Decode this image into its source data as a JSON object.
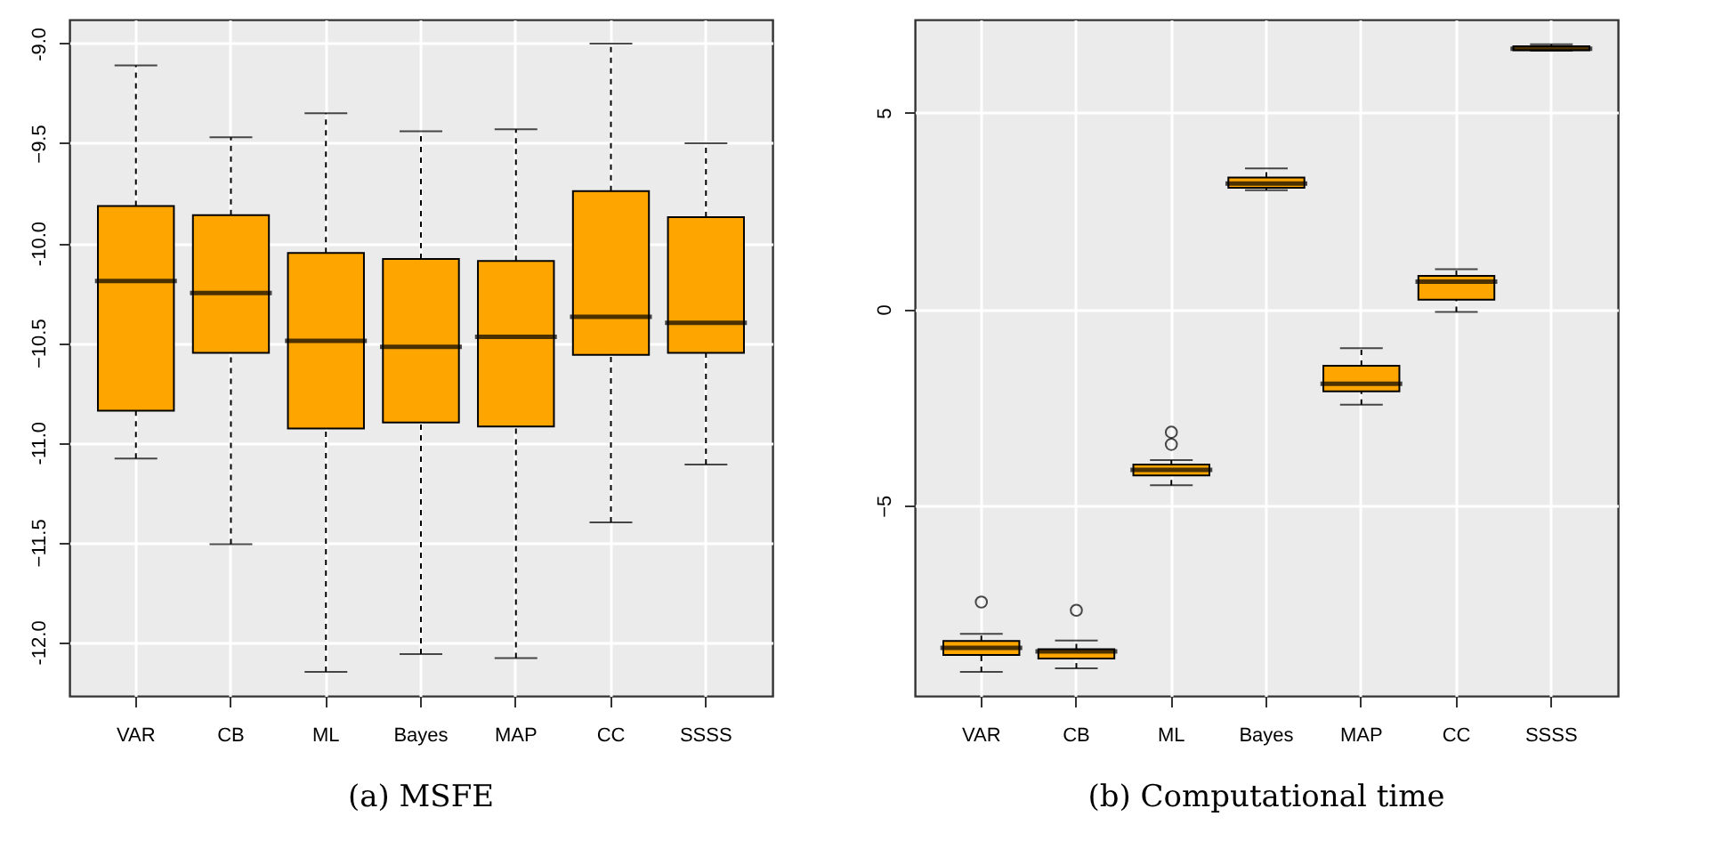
{
  "chart_data": [
    {
      "type": "box",
      "title": "(a) MSFE",
      "categories": [
        "VAR",
        "CB",
        "ML",
        "Bayes",
        "MAP",
        "CC",
        "SSSS"
      ],
      "ylim": [
        -12.27,
        -8.88
      ],
      "yticks": [
        {
          "value": -12,
          "label": "-12.0"
        },
        -11.5,
        {
          "value": -11,
          "label": "-11.0"
        },
        -10.5,
        {
          "value": -10,
          "label": "-10.0"
        },
        -9.5,
        {
          "value": -9,
          "label": "-9.0"
        }
      ],
      "grid": true,
      "series": [
        {
          "color": "#ffa500",
          "boxes": [
            {
              "low": -11.08,
              "q1": -10.84,
              "median": -10.19,
              "q3": -9.815,
              "high": -9.11
            },
            {
              "low": -11.51,
              "q1": -10.55,
              "median": -10.25,
              "q3": -9.86,
              "high": -9.47
            },
            {
              "low": -12.15,
              "q1": -10.93,
              "median": -10.49,
              "q3": -10.05,
              "high": -9.35
            },
            {
              "low": -12.06,
              "q1": -10.9,
              "median": -10.52,
              "q3": -10.08,
              "high": -9.44
            },
            {
              "low": -12.08,
              "q1": -10.92,
              "median": -10.47,
              "q3": -10.09,
              "high": -9.43
            },
            {
              "low": -11.4,
              "q1": -10.56,
              "median": -10.37,
              "q3": -9.74,
              "high": -9.0
            },
            {
              "low": -11.11,
              "q1": -10.55,
              "median": -10.4,
              "q3": -9.87,
              "high": -9.5
            }
          ]
        }
      ]
    },
    {
      "type": "box",
      "title": "(b) Computational time",
      "categories": [
        "VAR",
        "CB",
        "ML",
        "Bayes",
        "MAP",
        "CC",
        "SSSS"
      ],
      "ylim": [
        -9.84,
        7.37
      ],
      "yticks": [
        -5,
        0,
        5
      ],
      "grid": true,
      "series": [
        {
          "color": "#ffa500",
          "boxes": [
            {
              "low": -9.23,
              "q1": -8.8,
              "median": -8.62,
              "q3": -8.44,
              "high": -8.26,
              "outliers": [
                -7.45
              ]
            },
            {
              "low": -9.14,
              "q1": -8.89,
              "median": -8.71,
              "q3": -8.65,
              "high": -8.43,
              "outliers": [
                -7.66
              ]
            },
            {
              "low": -4.48,
              "q1": -4.23,
              "median": -4.09,
              "q3": -3.95,
              "high": -3.84,
              "outliers": [
                -3.13,
                -3.44
              ]
            },
            {
              "low": 3.03,
              "q1": 3.09,
              "median": 3.2,
              "q3": 3.35,
              "high": 3.58
            },
            {
              "low": -2.43,
              "q1": -2.09,
              "median": -1.9,
              "q3": -1.44,
              "high": -0.99
            },
            {
              "low": -0.07,
              "q1": 0.24,
              "median": 0.7,
              "q3": 0.85,
              "high": 1.02
            },
            {
              "low": 6.58,
              "q1": 6.59,
              "median": 6.63,
              "q3": 6.69,
              "high": 6.74
            }
          ]
        }
      ]
    }
  ]
}
